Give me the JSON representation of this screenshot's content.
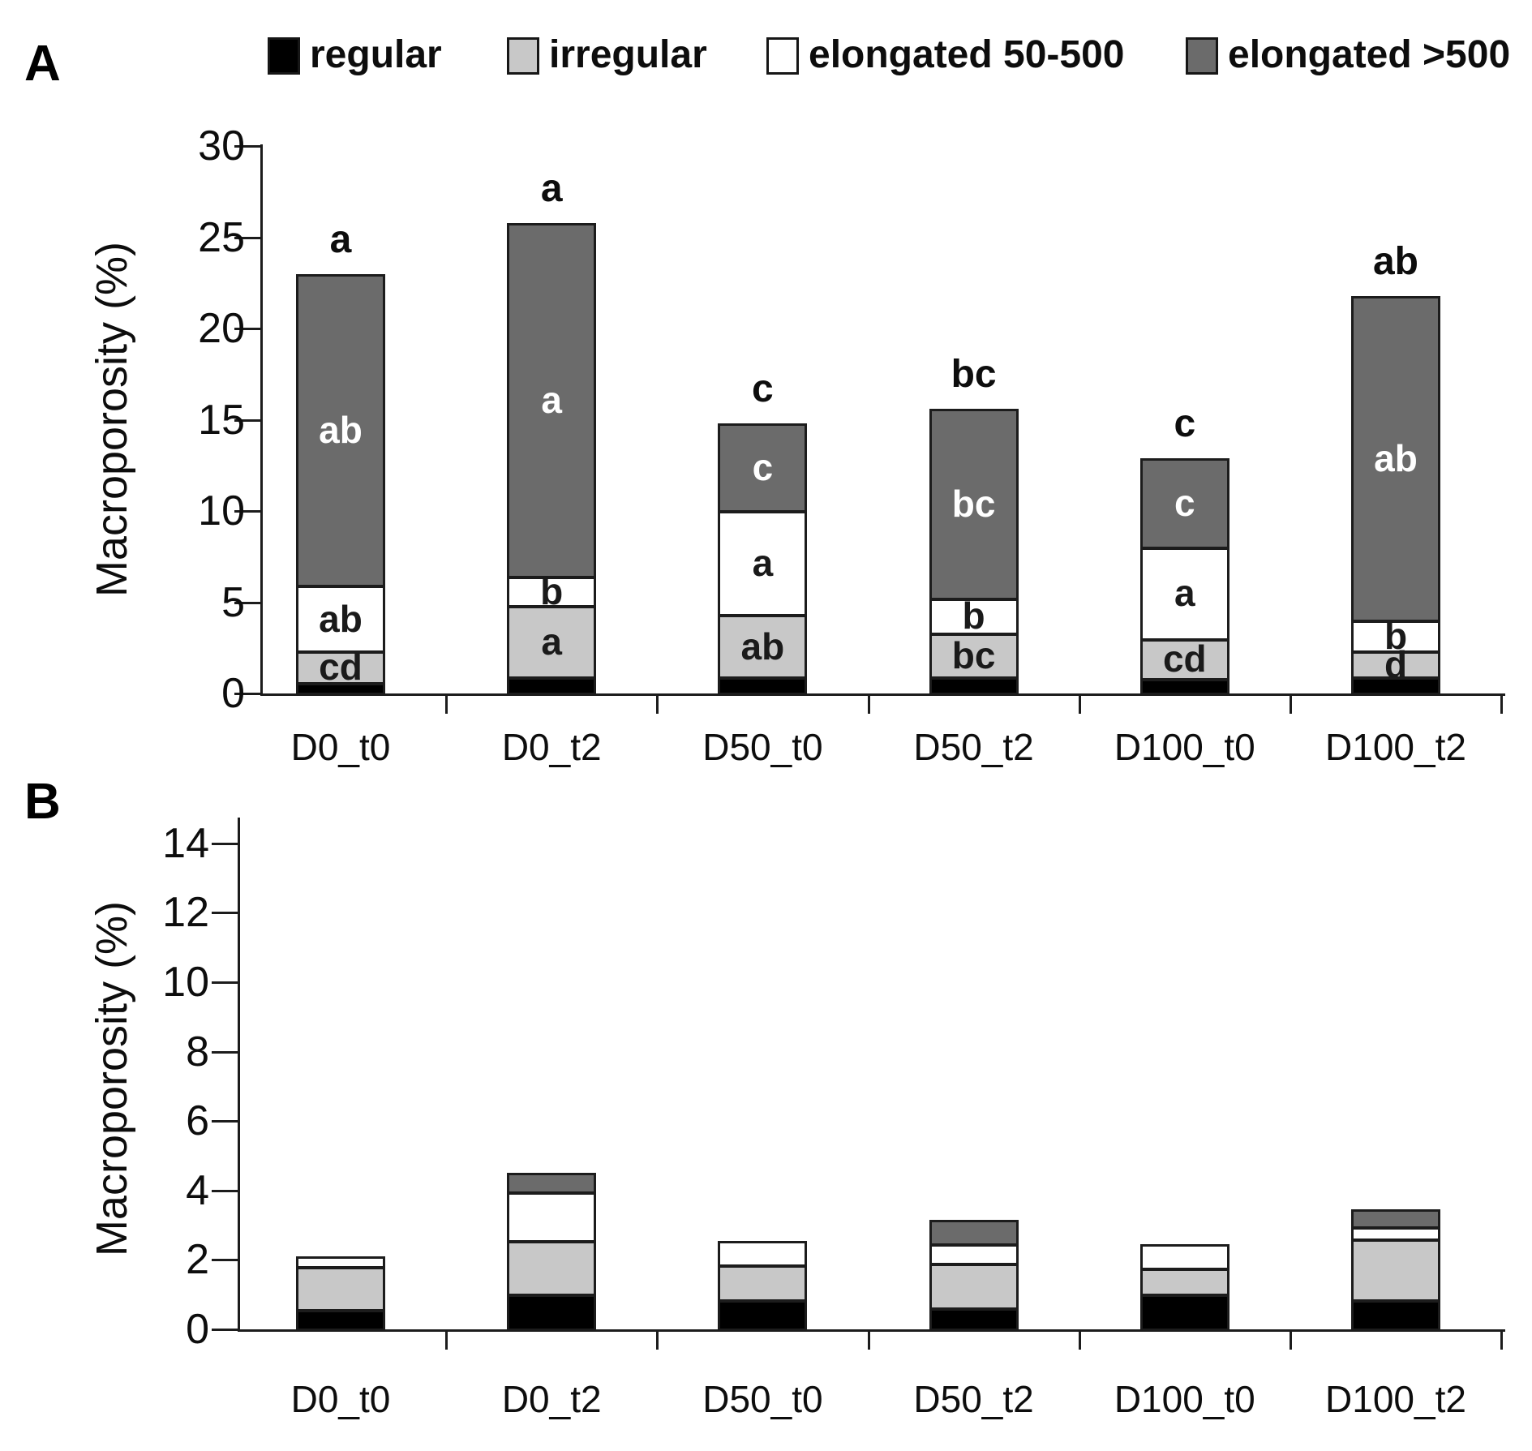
{
  "legend": [
    {
      "label": "regular",
      "color": "#000000"
    },
    {
      "label": "irregular",
      "color": "#c8c8c8"
    },
    {
      "label": "elongated 50-500",
      "color": "#ffffff"
    },
    {
      "label": "elongated >500",
      "color": "#6b6b6b"
    }
  ],
  "colors": {
    "black": "#000000",
    "light_gray": "#c8c8c8",
    "white": "#ffffff",
    "dark_gray": "#6b6b6b",
    "border": "#1c1c1c"
  },
  "chart_data": [
    {
      "type": "bar",
      "stacked": true,
      "panel_label": "A",
      "ylabel": "Macroporosity (%)",
      "xlabel": "",
      "ylim": [
        0,
        30
      ],
      "yticks": [
        0,
        5,
        10,
        15,
        20,
        25,
        30
      ],
      "grid": false,
      "legend_position": "top",
      "categories": [
        "D0_t0",
        "D0_t2",
        "D50_t0",
        "D50_t2",
        "D100_t0",
        "D100_t2"
      ],
      "series": [
        {
          "name": "regular",
          "color": "#000000",
          "values": [
            0.6,
            0.9,
            0.9,
            0.9,
            0.8,
            0.9
          ]
        },
        {
          "name": "irregular",
          "color": "#c8c8c8",
          "values": [
            1.7,
            3.9,
            3.4,
            2.4,
            2.2,
            1.4
          ],
          "segment_labels": [
            "cd",
            "a",
            "ab",
            "bc",
            "cd",
            "d"
          ],
          "label_color": "#1a1a1a"
        },
        {
          "name": "elongated 50-500",
          "color": "#ffffff",
          "values": [
            3.6,
            1.6,
            5.7,
            1.9,
            5.0,
            1.7
          ],
          "segment_labels": [
            "ab",
            "b",
            "a",
            "b",
            "a",
            "b"
          ],
          "label_color": "#1a1a1a"
        },
        {
          "name": "elongated >500",
          "color": "#6b6b6b",
          "values": [
            17.1,
            19.4,
            4.8,
            10.4,
            4.9,
            17.8
          ],
          "segment_labels": [
            "ab",
            "a",
            "c",
            "bc",
            "c",
            "ab"
          ],
          "label_color": "#ffffff"
        }
      ],
      "totals": [
        23.0,
        25.8,
        14.8,
        15.6,
        12.9,
        21.8
      ],
      "total_labels": [
        "a",
        "a",
        "c",
        "bc",
        "c",
        "ab"
      ]
    },
    {
      "type": "bar",
      "stacked": true,
      "panel_label": "B",
      "ylabel": "Macroporosity (%)",
      "xlabel": "",
      "ylim": [
        0,
        14.7
      ],
      "yticks": [
        0,
        2,
        4,
        6,
        8,
        10,
        12,
        14
      ],
      "grid": false,
      "categories": [
        "D0_t0",
        "D0_t2",
        "D50_t0",
        "D50_t2",
        "D100_t0",
        "D100_t2"
      ],
      "series": [
        {
          "name": "regular",
          "color": "#000000",
          "values": [
            0.55,
            1.0,
            0.85,
            0.6,
            1.0,
            0.85
          ]
        },
        {
          "name": "irregular",
          "color": "#c8c8c8",
          "values": [
            1.25,
            1.55,
            1.0,
            1.3,
            0.75,
            1.75
          ]
        },
        {
          "name": "elongated 50-500",
          "color": "#ffffff",
          "values": [
            0.3,
            1.4,
            0.7,
            0.55,
            0.7,
            0.35
          ]
        },
        {
          "name": "elongated >500",
          "color": "#6b6b6b",
          "values": [
            0,
            0.55,
            0,
            0.7,
            0,
            0.5
          ]
        }
      ],
      "totals": [
        2.1,
        4.5,
        2.55,
        3.15,
        2.45,
        3.45
      ],
      "total_labels": [
        "",
        "",
        "",
        "",
        "",
        ""
      ]
    }
  ]
}
